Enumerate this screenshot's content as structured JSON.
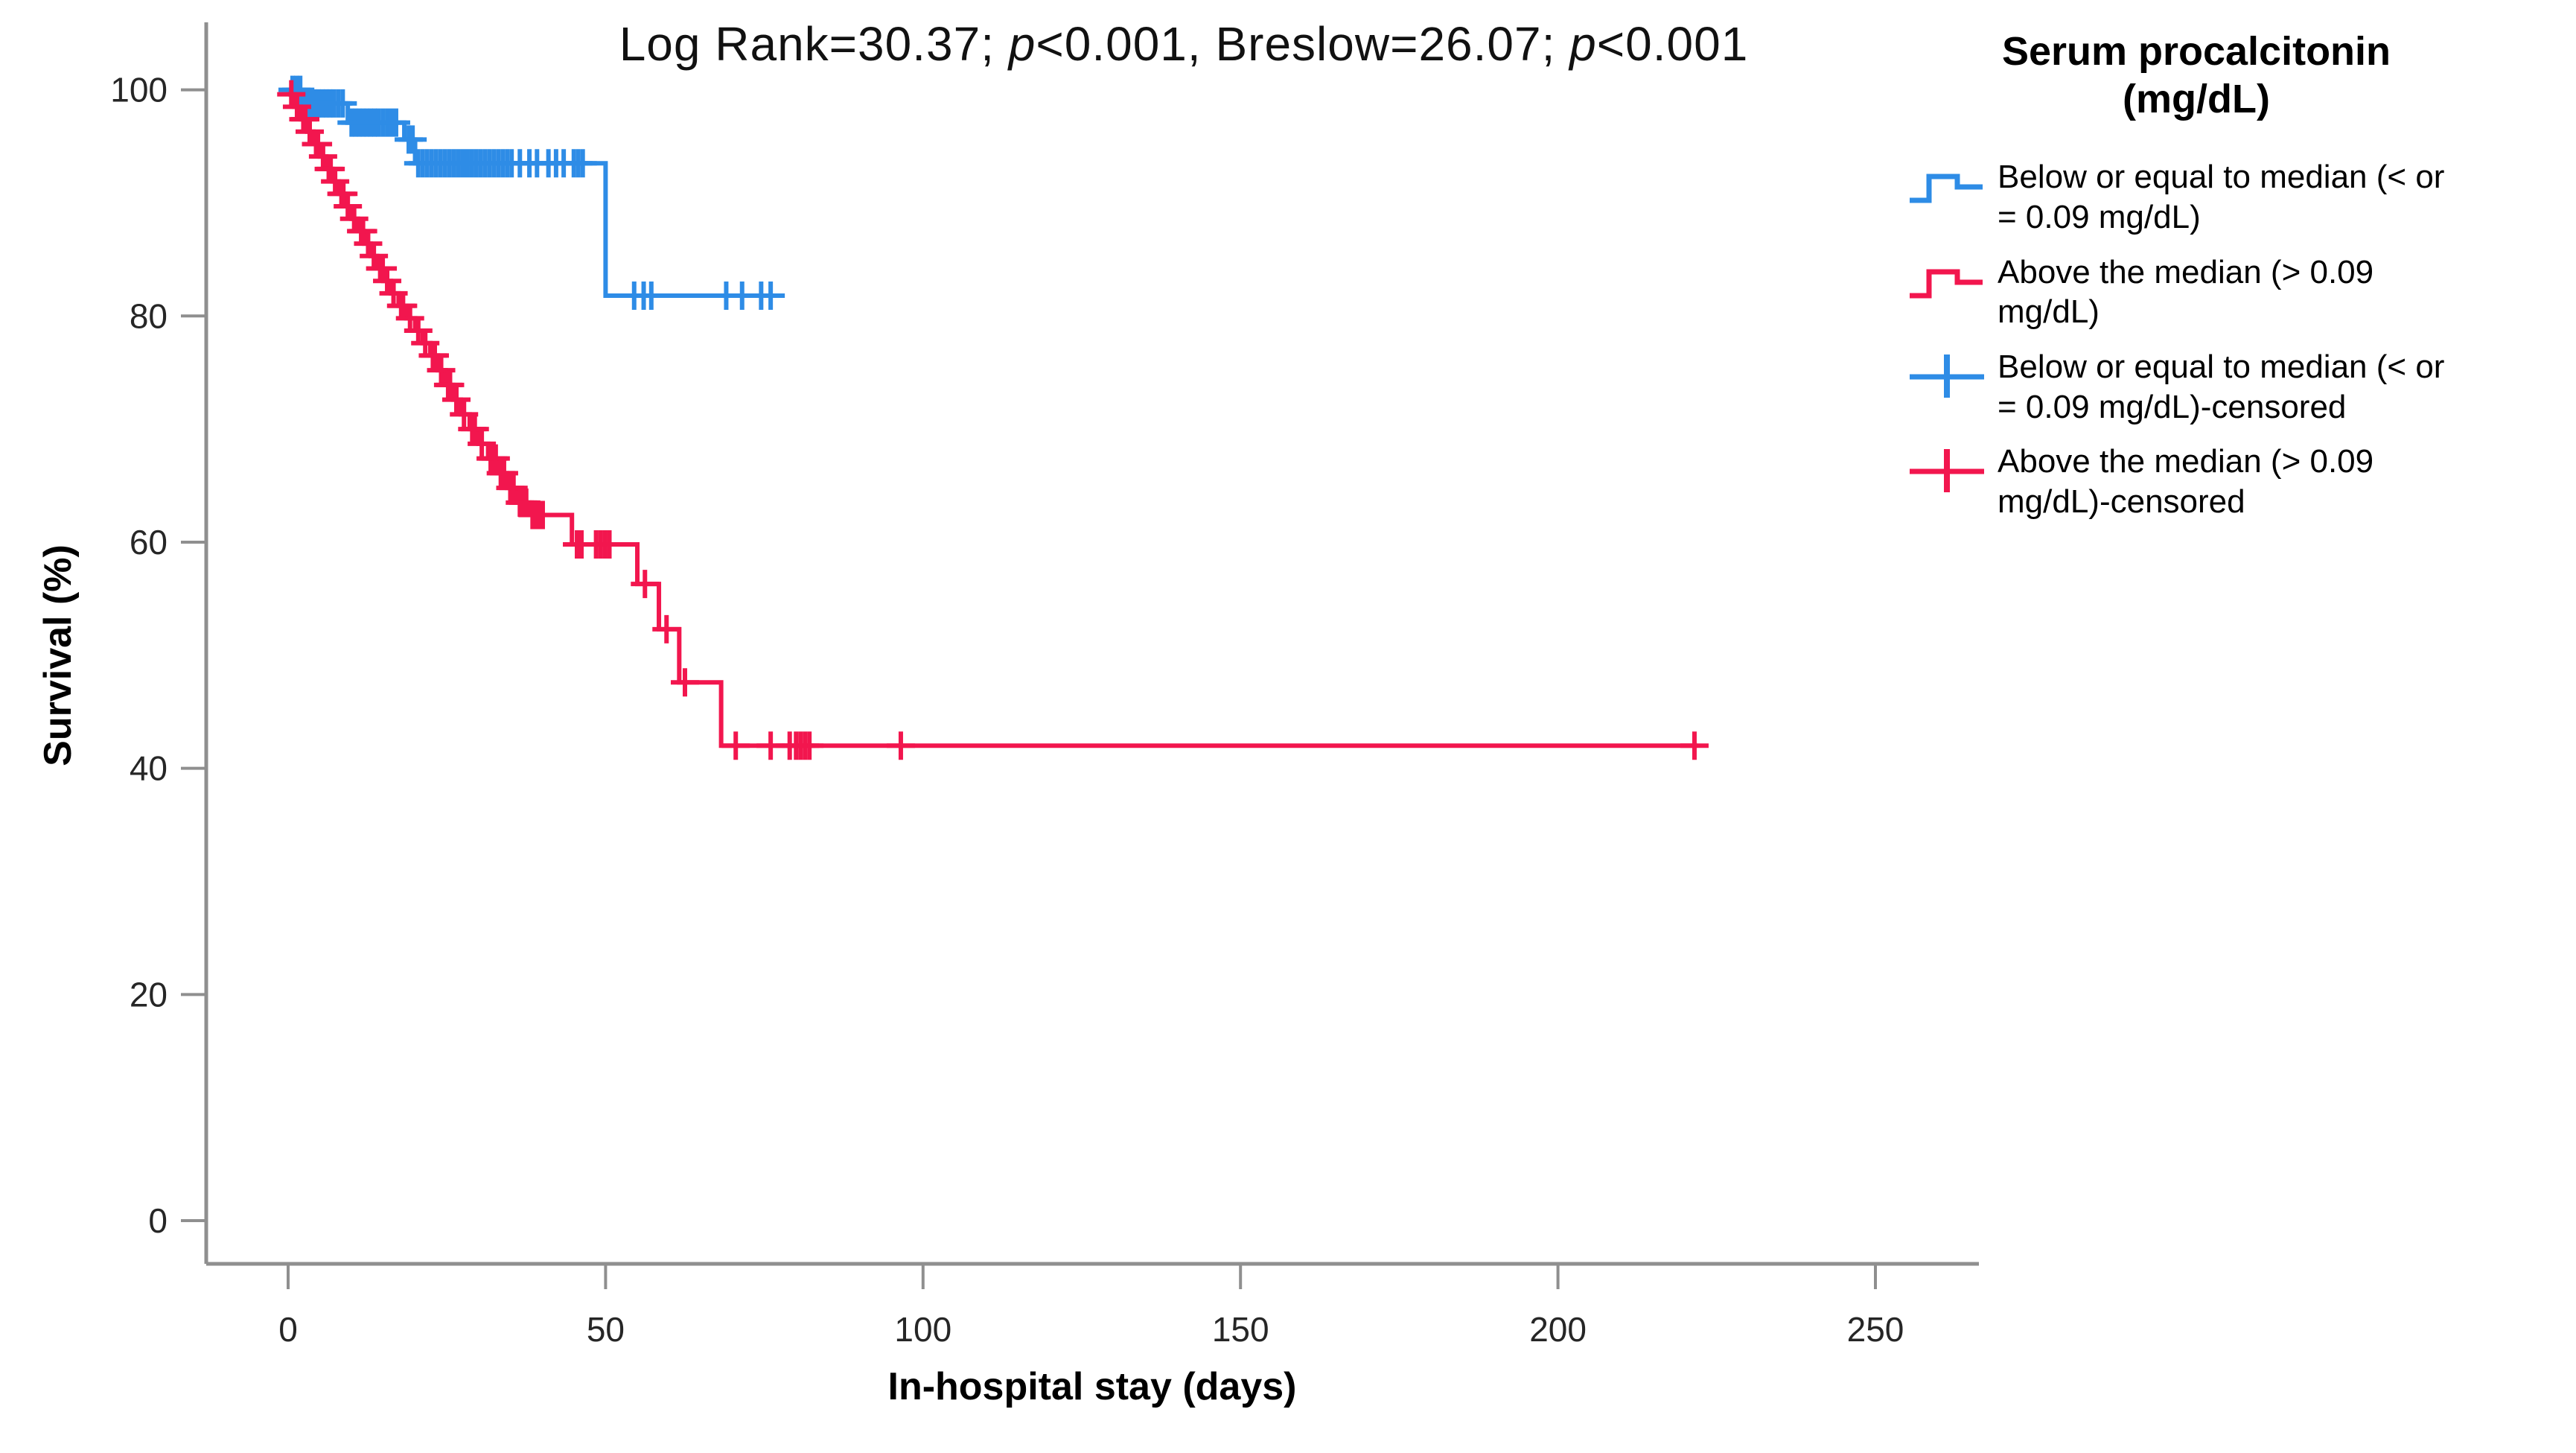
{
  "page": {
    "background": "#ffffff"
  },
  "title": {
    "parts": [
      {
        "text": "Log Rank=30.37; "
      },
      {
        "text": "p",
        "italic": true
      },
      {
        "text": "<0.001, Breslow=26.07; "
      },
      {
        "text": "p",
        "italic": true
      },
      {
        "text": "<0.001"
      }
    ],
    "plain": "Log Rank=30.37; p<0.001, Breslow=26.07; p<0.001"
  },
  "legend": {
    "title_lines": [
      "Serum procalcitonin",
      "(mg/dL)"
    ],
    "entries": [
      {
        "symbol": "step",
        "color": "#2E8CE6",
        "lines": [
          "Below or equal to median (< or",
          "= 0.09 mg/dL)"
        ]
      },
      {
        "symbol": "step",
        "color": "#F2164E",
        "lines": [
          "Above the median (> 0.09",
          "mg/dL)"
        ]
      },
      {
        "symbol": "plus",
        "color": "#2E8CE6",
        "lines": [
          "Below or equal to median (< or",
          "= 0.09 mg/dL)-censored"
        ]
      },
      {
        "symbol": "plus",
        "color": "#F2164E",
        "lines": [
          "Above the median (> 0.09",
          "mg/dL)-censored"
        ]
      }
    ]
  },
  "chart_data": {
    "type": "line",
    "subtype": "kaplan-meier-step",
    "title": "Log Rank=30.37; p<0.001, Breslow=26.07; p<0.001",
    "xlabel": "In-hospital stay (days)",
    "ylabel": "Survival (%)",
    "xlim": [
      0,
      266
    ],
    "ylim": [
      0,
      100
    ],
    "x_ticks": [
      0,
      50,
      100,
      150,
      200,
      250
    ],
    "y_ticks": [
      0,
      20,
      40,
      60,
      80,
      100
    ],
    "grid": false,
    "legend_position": "right",
    "axis_color": "#8f8f8f",
    "tick_label_color": "#262626",
    "series": [
      {
        "name": "Below or equal to median (< or = 0.09 mg/dL)",
        "color": "#2E8CE6",
        "steps": [
          [
            0,
            100
          ],
          [
            2.5,
            98.8
          ],
          [
            9.4,
            97.1
          ],
          [
            18.3,
            95.6
          ],
          [
            20,
            93.5
          ],
          [
            50,
            81.8
          ],
          [
            76.5,
            81.8
          ]
        ],
        "censored_times": [
          0.7,
          1.3,
          1.9,
          3,
          3.6,
          4.2,
          4.8,
          5.4,
          6,
          6.6,
          7.2,
          7.9,
          8.6,
          10,
          10.6,
          11.2,
          11.8,
          12.4,
          13,
          13.6,
          14.2,
          14.9,
          15.6,
          16.3,
          17,
          19,
          19.6,
          20.5,
          21.2,
          21.9,
          22.6,
          23.3,
          24,
          24.7,
          25.4,
          26.1,
          26.8,
          27.5,
          28.2,
          28.9,
          29.6,
          30.3,
          31,
          31.7,
          32.4,
          33.1,
          33.8,
          34.5,
          35.2,
          36.5,
          38,
          39.2,
          41,
          42.2,
          43.4,
          45,
          45.7,
          46.4,
          54.5,
          56,
          57.2,
          69,
          71.5,
          74.5,
          76
        ]
      },
      {
        "name": "Above the median (> 0.09 mg/dL)",
        "color": "#F2164E",
        "steps": [
          [
            0,
            99.6
          ],
          [
            1,
            98.5
          ],
          [
            2,
            97.4
          ],
          [
            3,
            96.3
          ],
          [
            4,
            95.2
          ],
          [
            5,
            94.1
          ],
          [
            6,
            93
          ],
          [
            7,
            91.9
          ],
          [
            8,
            90.8
          ],
          [
            9,
            89.7
          ],
          [
            10,
            88.6
          ],
          [
            11,
            87.5
          ],
          [
            12,
            86.4
          ],
          [
            13,
            85.3
          ],
          [
            14,
            84.2
          ],
          [
            15,
            83.1
          ],
          [
            16.2,
            82
          ],
          [
            17.4,
            80.9
          ],
          [
            18.6,
            79.8
          ],
          [
            20,
            78.7
          ],
          [
            21.2,
            77.6
          ],
          [
            22.4,
            76.5
          ],
          [
            23.6,
            75.2
          ],
          [
            24.8,
            73.9
          ],
          [
            26,
            72.6
          ],
          [
            27.2,
            71.3
          ],
          [
            28.6,
            70
          ],
          [
            30,
            68.7
          ],
          [
            31.5,
            67.4
          ],
          [
            33,
            66.1
          ],
          [
            34.5,
            64.8
          ],
          [
            36,
            63.5
          ],
          [
            38,
            62.4
          ],
          [
            44.7,
            59.8
          ],
          [
            55,
            56.3
          ],
          [
            58.4,
            52.3
          ],
          [
            61.6,
            47.6
          ],
          [
            68.2,
            42
          ],
          [
            222,
            42
          ]
        ],
        "censored_times": [
          0.5,
          1.4,
          2.4,
          2.7,
          3.4,
          4.4,
          4.7,
          5.5,
          6.4,
          6.7,
          7.4,
          8.4,
          8.7,
          9.4,
          10.4,
          11.5,
          11.8,
          12.6,
          13.5,
          14.5,
          14.9,
          15.6,
          16.6,
          17.8,
          18.1,
          19.2,
          20.5,
          21.6,
          22.8,
          23.1,
          24.1,
          25.2,
          25.5,
          26.5,
          27.7,
          29,
          29.4,
          30.5,
          31.9,
          32.3,
          32.7,
          33.5,
          34,
          35,
          35.5,
          36.5,
          37,
          37.5,
          38.5,
          39,
          39.5,
          40.1,
          45.5,
          46.2,
          48.5,
          49.2,
          49.9,
          50.6,
          56.2,
          59.6,
          62.5,
          70.5,
          76,
          79,
          80,
          80.7,
          81.4,
          82.1,
          96.5,
          221.5
        ]
      }
    ]
  }
}
